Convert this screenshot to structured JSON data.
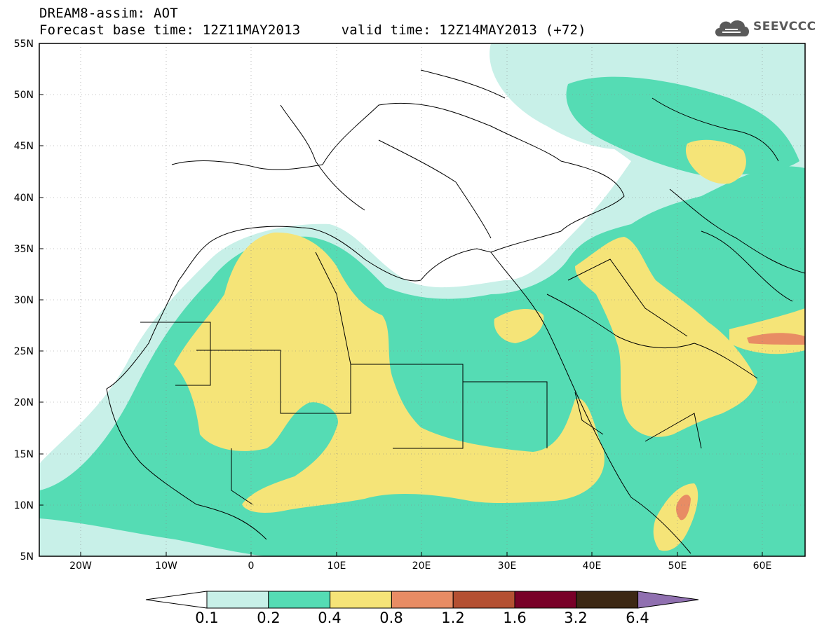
{
  "title": {
    "line1": "DREAM8-assim: AOT",
    "line2": "Forecast base time: 12Z11MAY2013     valid time: 12Z14MAY2013 (+72)"
  },
  "logo": {
    "text": "SEEVCCC",
    "icon": "cloud-icon"
  },
  "map": {
    "lat_labels": [
      "55N",
      "50N",
      "45N",
      "40N",
      "35N",
      "30N",
      "25N",
      "20N",
      "15N",
      "10N",
      "5N"
    ],
    "lon_labels": [
      "20W",
      "10W",
      "0",
      "10E",
      "20E",
      "30E",
      "40E",
      "50E",
      "60E"
    ],
    "lon_range": [
      -25,
      65
    ],
    "lat_range": [
      5,
      55
    ]
  },
  "colorbar": {
    "labels": [
      "0.1",
      "0.2",
      "0.4",
      "0.8",
      "1.2",
      "1.6",
      "3.2",
      "6.4"
    ],
    "colors": [
      "#ffffff",
      "#c8f0e8",
      "#55dcb4",
      "#f5e478",
      "#e88c64",
      "#b45032",
      "#780028",
      "#3c2814",
      "#9070b0"
    ]
  },
  "palette": {
    "aot_0_1_0_2": "#c8f0e8",
    "aot_0_2_0_4": "#55dcb4",
    "aot_0_4_0_8": "#f5e478",
    "aot_0_8_1_2": "#e88c64"
  }
}
